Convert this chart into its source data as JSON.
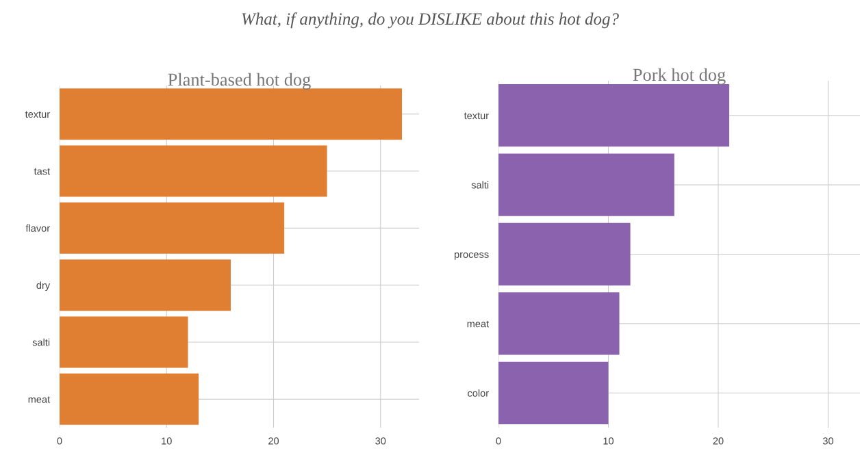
{
  "chart_data": [
    {
      "type": "bar",
      "orientation": "horizontal",
      "title": "Plant-based hot dog",
      "annotations": [
        "What, if anything, do you DISLIKE about this hot dog?"
      ],
      "categories": [
        "textur",
        "tast",
        "flavor",
        "dry",
        "salti",
        "meat"
      ],
      "values": [
        32,
        25,
        21,
        16,
        12,
        13
      ],
      "color": "#e07f32",
      "xlim": [
        0,
        33.6
      ],
      "xticks": [
        0,
        10,
        20,
        30
      ],
      "grid": true
    },
    {
      "type": "bar",
      "orientation": "horizontal",
      "title": "Pork hot dog",
      "categories": [
        "textur",
        "salti",
        "process",
        "meat",
        "color"
      ],
      "values": [
        21,
        16,
        12,
        11,
        10
      ],
      "color": "#8a62ad",
      "xlim": [
        0,
        32.9
      ],
      "xticks": [
        0,
        10,
        20,
        30
      ],
      "grid": true
    }
  ]
}
